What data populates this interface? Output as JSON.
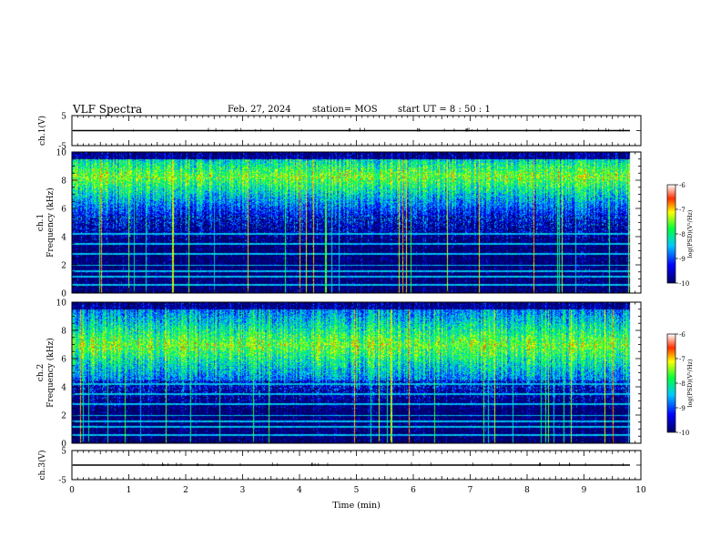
{
  "header": {
    "title": "VLF Spectra",
    "date": "Feb. 27, 2024",
    "station": "station= MOS",
    "start_ut": "start  UT =   8  : 50 : 1"
  },
  "chart_data": {
    "type": "heatmap",
    "xlabel": "Time  (min)",
    "xlim": [
      0,
      10
    ],
    "x_ticks": [
      "0",
      "1",
      "2",
      "3",
      "4",
      "5",
      "6",
      "7",
      "8",
      "9",
      "10"
    ],
    "panels": [
      {
        "id": "ch1-voltage",
        "type": "line",
        "ylabel": "ch.1(V)",
        "ylim": [
          -5,
          5
        ],
        "y_ticks": [
          "5",
          "-5"
        ],
        "trace_level": 0
      },
      {
        "id": "ch1-spectrogram",
        "type": "heatmap",
        "ylabel_line1": "ch.1",
        "ylabel_line2": "Frequency  (kHz)",
        "ylim": [
          0,
          10
        ],
        "y_ticks": [
          "0",
          "2",
          "4",
          "6",
          "8",
          "10"
        ],
        "data_xlim": [
          0,
          9.8
        ],
        "emission_band_khz": [
          5.5,
          9.5
        ],
        "emission_peak_khz": 8.3,
        "colorbar": {
          "label": "log(PSD)(V²/Hz)",
          "range": [
            -10,
            -6
          ],
          "ticks": [
            "-6",
            "-7",
            "-8",
            "-9",
            "-10"
          ]
        }
      },
      {
        "id": "ch2-spectrogram",
        "type": "heatmap",
        "ylabel_line1": "ch.2",
        "ylabel_line2": "Frequency  (kHz)",
        "ylim": [
          0,
          10
        ],
        "y_ticks": [
          "0",
          "2",
          "4",
          "6",
          "8",
          "10"
        ],
        "data_xlim": [
          0,
          9.8
        ],
        "emission_band_khz": [
          4.5,
          9.5
        ],
        "emission_peak_khz": 7.0,
        "colorbar": {
          "label": "log(PSD)(V²/Hz)",
          "range": [
            -10,
            -6
          ],
          "ticks": [
            "-6",
            "-7",
            "-8",
            "-9",
            "-10"
          ]
        }
      },
      {
        "id": "ch3-voltage",
        "type": "line",
        "ylabel": "ch.3(V)",
        "ylim": [
          -5,
          5
        ],
        "y_ticks": [
          "5",
          "-5"
        ],
        "trace_level": 0
      }
    ]
  }
}
